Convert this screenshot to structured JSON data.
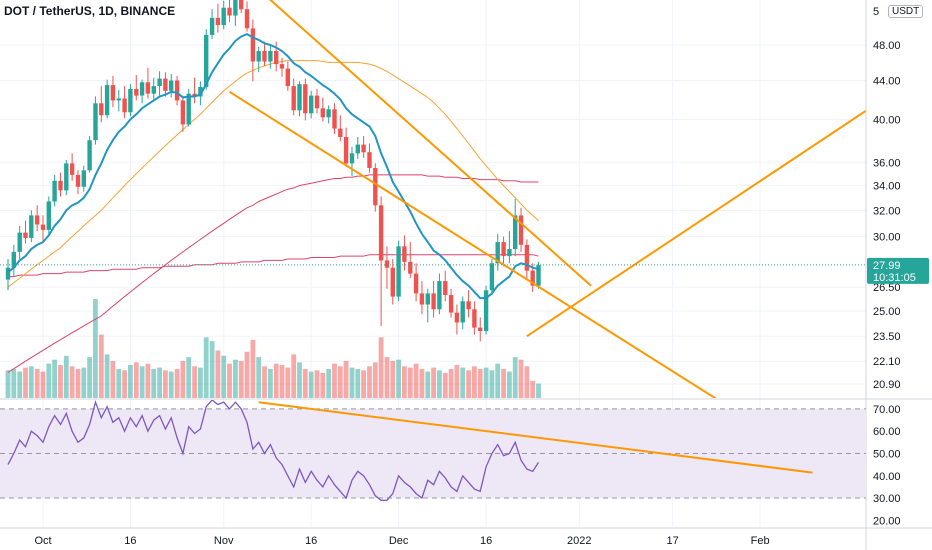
{
  "header": {
    "title": "DOT / TetherUS, 1D, BINANCE",
    "unit": "USDT",
    "top_tick_fragment": "5"
  },
  "last_price": {
    "value": "27.99",
    "countdown": "10:31:05"
  },
  "colors": {
    "up": "#26a69a",
    "down": "#ef5350",
    "ema": "#2196c4",
    "ma_mid": "#f7a334",
    "ma_slow": "#e0436a",
    "trendline": "#ff9800",
    "rsi_line": "#7e57c2",
    "rsi_band": "#ede7f6"
  },
  "chart_data": [
    {
      "type": "candlestick",
      "title": "DOT / TetherUS, 1D, BINANCE",
      "y_scale": "log",
      "y_ticks": [
        "48.00",
        "44.00",
        "40.00",
        "36.00",
        "34.00",
        "32.00",
        "30.00",
        "27.99",
        "26.50",
        "25.00",
        "23.50",
        "22.10",
        "20.90"
      ],
      "x_ticks": [
        "Oct",
        "16",
        "Nov",
        "16",
        "Dec",
        "16",
        "2022",
        "17",
        "Feb"
      ],
      "start_date": "2021-09-25",
      "ohlc": [
        [
          27.0,
          28.4,
          26.3,
          27.8
        ],
        [
          27.8,
          29.4,
          27.2,
          28.9
        ],
        [
          28.9,
          30.8,
          28.4,
          30.3
        ],
        [
          30.3,
          31.2,
          29.5,
          29.9
        ],
        [
          29.9,
          32.0,
          29.6,
          31.6
        ],
        [
          31.6,
          32.4,
          30.4,
          30.9
        ],
        [
          30.9,
          31.6,
          29.7,
          30.5
        ],
        [
          30.5,
          33.1,
          30.2,
          32.7
        ],
        [
          32.7,
          34.9,
          32.3,
          34.4
        ],
        [
          34.4,
          35.1,
          33.1,
          33.6
        ],
        [
          33.6,
          36.2,
          33.2,
          35.9
        ],
        [
          35.9,
          36.8,
          34.4,
          34.9
        ],
        [
          34.9,
          35.3,
          33.3,
          33.9
        ],
        [
          33.9,
          35.7,
          33.5,
          35.3
        ],
        [
          35.3,
          38.4,
          35.1,
          38.0
        ],
        [
          38.0,
          42.3,
          37.6,
          41.6
        ],
        [
          41.6,
          43.4,
          39.7,
          40.4
        ],
        [
          40.4,
          44.1,
          40.1,
          43.5
        ],
        [
          43.5,
          44.5,
          41.2,
          41.9
        ],
        [
          41.9,
          43.0,
          40.8,
          42.1
        ],
        [
          42.1,
          43.4,
          40.1,
          40.7
        ],
        [
          40.7,
          43.6,
          40.3,
          43.1
        ],
        [
          43.1,
          44.6,
          41.9,
          42.4
        ],
        [
          42.4,
          44.1,
          41.6,
          43.8
        ],
        [
          43.8,
          45.4,
          42.1,
          42.6
        ],
        [
          42.6,
          44.3,
          41.8,
          43.4
        ],
        [
          43.4,
          45.0,
          42.4,
          44.2
        ],
        [
          44.2,
          44.9,
          42.3,
          42.9
        ],
        [
          42.9,
          44.7,
          42.2,
          44.0
        ],
        [
          44.0,
          44.5,
          41.4,
          41.9
        ],
        [
          41.9,
          42.4,
          38.8,
          39.5
        ],
        [
          39.5,
          43.1,
          39.3,
          42.6
        ],
        [
          42.6,
          44.3,
          41.6,
          42.3
        ],
        [
          42.3,
          43.9,
          41.4,
          43.3
        ],
        [
          43.3,
          49.9,
          43.0,
          49.2
        ],
        [
          49.2,
          52.4,
          48.7,
          51.3
        ],
        [
          51.3,
          53.1,
          49.5,
          50.4
        ],
        [
          50.4,
          53.5,
          49.9,
          52.6
        ],
        [
          52.6,
          54.1,
          50.8,
          51.6
        ],
        [
          51.6,
          54.5,
          50.3,
          53.8
        ],
        [
          53.8,
          54.6,
          51.9,
          52.4
        ],
        [
          52.4,
          53.4,
          49.6,
          50.0
        ],
        [
          50.0,
          51.1,
          43.9,
          46.1
        ],
        [
          46.1,
          47.8,
          44.9,
          47.3
        ],
        [
          47.3,
          48.4,
          45.6,
          46.1
        ],
        [
          46.1,
          47.9,
          45.3,
          47.3
        ],
        [
          47.3,
          48.4,
          45.0,
          45.8
        ],
        [
          45.8,
          46.5,
          44.4,
          45.3
        ],
        [
          45.3,
          46.1,
          42.9,
          43.4
        ],
        [
          43.4,
          44.2,
          40.4,
          40.9
        ],
        [
          40.9,
          43.9,
          40.3,
          43.6
        ],
        [
          43.6,
          44.2,
          39.9,
          40.6
        ],
        [
          40.6,
          42.9,
          40.1,
          42.4
        ],
        [
          42.4,
          43.1,
          40.6,
          41.1
        ],
        [
          41.1,
          42.2,
          39.8,
          40.2
        ],
        [
          40.2,
          41.4,
          39.6,
          41.0
        ],
        [
          41.0,
          41.6,
          38.6,
          39.1
        ],
        [
          39.1,
          40.4,
          37.9,
          38.3
        ],
        [
          38.3,
          39.2,
          35.6,
          35.9
        ],
        [
          35.9,
          37.4,
          34.8,
          36.8
        ],
        [
          36.8,
          38.3,
          36.3,
          37.6
        ],
        [
          37.6,
          38.4,
          36.4,
          36.9
        ],
        [
          36.9,
          37.7,
          35.1,
          35.5
        ],
        [
          35.5,
          35.9,
          31.9,
          32.4
        ],
        [
          32.4,
          33.1,
          24.1,
          28.3
        ],
        [
          28.3,
          29.3,
          26.4,
          27.8
        ],
        [
          27.8,
          28.4,
          25.4,
          25.9
        ],
        [
          25.9,
          29.7,
          25.6,
          29.3
        ],
        [
          29.3,
          30.1,
          27.6,
          28.2
        ],
        [
          28.2,
          29.6,
          27.1,
          27.4
        ],
        [
          27.4,
          28.1,
          25.6,
          26.1
        ],
        [
          26.1,
          26.9,
          24.8,
          25.4
        ],
        [
          25.4,
          26.4,
          24.3,
          26.1
        ],
        [
          26.1,
          26.9,
          24.6,
          25.1
        ],
        [
          25.1,
          27.4,
          24.8,
          26.9
        ],
        [
          26.9,
          27.6,
          25.6,
          26.0
        ],
        [
          26.0,
          26.4,
          24.6,
          24.9
        ],
        [
          24.9,
          25.4,
          23.6,
          24.3
        ],
        [
          24.3,
          25.9,
          23.9,
          25.6
        ],
        [
          25.6,
          26.3,
          24.6,
          25.1
        ],
        [
          25.1,
          25.6,
          23.6,
          24.0
        ],
        [
          24.0,
          24.6,
          23.2,
          23.8
        ],
        [
          23.8,
          26.6,
          23.6,
          26.3
        ],
        [
          26.3,
          28.4,
          26.0,
          28.1
        ],
        [
          28.1,
          30.2,
          27.6,
          29.6
        ],
        [
          29.6,
          30.0,
          27.9,
          28.6
        ],
        [
          28.6,
          30.4,
          28.1,
          29.1
        ],
        [
          29.1,
          32.9,
          28.6,
          31.6
        ],
        [
          31.6,
          32.2,
          28.9,
          29.4
        ],
        [
          29.4,
          29.8,
          27.1,
          27.6
        ],
        [
          27.6,
          28.1,
          26.2,
          26.6
        ],
        [
          26.6,
          28.2,
          26.4,
          27.99
        ]
      ],
      "volume": [
        42,
        44,
        40,
        46,
        48,
        44,
        40,
        52,
        58,
        50,
        64,
        48,
        44,
        46,
        62,
        150,
        96,
        66,
        56,
        44,
        42,
        50,
        54,
        48,
        52,
        44,
        46,
        42,
        40,
        44,
        56,
        62,
        48,
        46,
        92,
        86,
        72,
        64,
        52,
        58,
        56,
        70,
        88,
        62,
        48,
        44,
        52,
        50,
        46,
        66,
        54,
        44,
        40,
        42,
        38,
        44,
        52,
        48,
        56,
        46,
        44,
        42,
        48,
        54,
        92,
        62,
        56,
        58,
        48,
        46,
        52,
        44,
        40,
        46,
        42,
        38,
        44,
        50,
        46,
        42,
        48,
        44,
        46,
        42,
        52,
        44,
        40,
        62,
        58,
        48,
        26,
        22
      ],
      "ema": [
        27.5,
        27.8,
        28.3,
        28.6,
        29.1,
        29.4,
        29.6,
        30.1,
        30.8,
        31.3,
        32.0,
        32.4,
        32.6,
        33.0,
        33.7,
        34.9,
        35.9,
        37.1,
        38.0,
        38.8,
        39.3,
        40.0,
        40.5,
        41.1,
        41.5,
        41.9,
        42.3,
        42.5,
        42.8,
        42.7,
        42.2,
        42.3,
        42.3,
        42.5,
        43.6,
        44.9,
        45.9,
        46.9,
        47.6,
        48.5,
        49.0,
        49.3,
        48.9,
        48.6,
        48.2,
        48.0,
        47.7,
        47.3,
        46.7,
        45.9,
        45.5,
        44.9,
        44.5,
        44.0,
        43.5,
        43.1,
        42.6,
        42.0,
        41.1,
        40.5,
        40.1,
        39.7,
        39.3,
        38.4,
        36.8,
        35.6,
        34.3,
        33.5,
        32.7,
        31.9,
        31.0,
        30.2,
        29.6,
        29.0,
        28.7,
        28.3,
        27.8,
        27.3,
        26.9,
        26.6,
        26.2,
        25.8,
        25.8,
        26.1,
        26.6,
        26.9,
        27.2,
        27.9,
        28.1,
        28.0,
        27.8,
        27.7
      ],
      "ma_mid": [
        26.5,
        26.8,
        27.1,
        27.4,
        27.7,
        28.0,
        28.3,
        28.6,
        28.9,
        29.2,
        29.6,
        30.0,
        30.4,
        30.8,
        31.2,
        31.6,
        32.0,
        32.5,
        33.0,
        33.5,
        34.0,
        34.5,
        35.0,
        35.5,
        36.0,
        36.5,
        37.0,
        37.5,
        38.0,
        38.5,
        39.0,
        39.5,
        40.0,
        40.5,
        41.1,
        41.7,
        42.3,
        42.9,
        43.4,
        43.9,
        44.4,
        44.8,
        45.1,
        45.4,
        45.6,
        45.8,
        46.0,
        46.1,
        46.2,
        46.2,
        46.2,
        46.2,
        46.2,
        46.2,
        46.1,
        46.0,
        46.0,
        46.0,
        46.0,
        46.0,
        46.0,
        45.9,
        45.8,
        45.6,
        45.3,
        45.0,
        44.6,
        44.2,
        43.8,
        43.4,
        43.0,
        42.6,
        42.2,
        41.7,
        41.1,
        40.5,
        39.8,
        39.1,
        38.4,
        37.7,
        37.0,
        36.3,
        35.7,
        35.1,
        34.5,
        34.0,
        33.5,
        33.0,
        32.5,
        32.0,
        31.6,
        31.2
      ],
      "ma_slow": [
        21.5,
        21.7,
        21.9,
        22.1,
        22.3,
        22.5,
        22.7,
        22.9,
        23.1,
        23.3,
        23.5,
        23.7,
        23.9,
        24.1,
        24.3,
        24.5,
        24.7,
        25.0,
        25.3,
        25.6,
        25.9,
        26.2,
        26.5,
        26.8,
        27.1,
        27.4,
        27.7,
        28.0,
        28.3,
        28.6,
        28.9,
        29.2,
        29.5,
        29.8,
        30.1,
        30.4,
        30.7,
        31.0,
        31.3,
        31.6,
        31.9,
        32.2,
        32.4,
        32.7,
        32.9,
        33.1,
        33.3,
        33.5,
        33.7,
        33.8,
        34.0,
        34.1,
        34.2,
        34.3,
        34.4,
        34.5,
        34.6,
        34.6,
        34.7,
        34.7,
        34.8,
        34.8,
        34.9,
        34.9,
        34.9,
        34.9,
        34.9,
        34.9,
        34.9,
        34.9,
        34.9,
        34.9,
        34.8,
        34.8,
        34.8,
        34.7,
        34.7,
        34.7,
        34.6,
        34.6,
        34.6,
        34.5,
        34.5,
        34.5,
        34.5,
        34.4,
        34.4,
        34.4,
        34.3,
        34.3,
        34.3,
        34.3
      ],
      "ma_long": [
        27.2,
        27.2,
        27.3,
        27.3,
        27.3,
        27.3,
        27.4,
        27.4,
        27.4,
        27.4,
        27.5,
        27.5,
        27.5,
        27.5,
        27.6,
        27.6,
        27.6,
        27.6,
        27.7,
        27.7,
        27.7,
        27.7,
        27.7,
        27.8,
        27.8,
        27.8,
        27.8,
        27.9,
        27.9,
        27.9,
        27.9,
        27.9,
        28.0,
        28.0,
        28.0,
        28.0,
        28.1,
        28.1,
        28.1,
        28.1,
        28.2,
        28.2,
        28.2,
        28.2,
        28.3,
        28.3,
        28.3,
        28.3,
        28.4,
        28.4,
        28.4,
        28.4,
        28.5,
        28.5,
        28.5,
        28.5,
        28.5,
        28.6,
        28.6,
        28.6,
        28.6,
        28.6,
        28.7,
        28.7,
        28.7,
        28.7,
        28.7,
        28.7,
        28.7,
        28.7,
        28.7,
        28.7,
        28.7,
        28.7,
        28.7,
        28.7,
        28.7,
        28.7,
        28.7,
        28.7,
        28.7,
        28.7,
        28.7,
        28.7,
        28.7,
        28.7,
        28.7,
        28.7,
        28.7,
        28.7,
        28.7,
        28.6
      ],
      "trendlines": [
        [
          [
            "2021-11-07",
            55.0
          ],
          [
            "2022-01-03",
            26.6
          ]
        ],
        [
          [
            "2021-11-02",
            42.8
          ],
          [
            "2022-02-27",
            14.9
          ]
        ],
        [
          [
            "2021-12-23",
            23.5
          ],
          [
            "2022-03-12",
            49.8
          ]
        ]
      ]
    },
    {
      "type": "line",
      "title": "",
      "y_ticks": [
        "70.00",
        "60.00",
        "50.00",
        "40.00",
        "30.00",
        "20.00"
      ],
      "ylim": [
        17,
        74
      ],
      "band": [
        30,
        70
      ],
      "midline": 50,
      "rsi": [
        45,
        50,
        56,
        53,
        60,
        58,
        55,
        62,
        67,
        63,
        68,
        60,
        55,
        57,
        63,
        73,
        66,
        71,
        64,
        66,
        60,
        66,
        62,
        67,
        60,
        65,
        67,
        61,
        66,
        57,
        50,
        62,
        59,
        61,
        71,
        74,
        72,
        73,
        70,
        73,
        70,
        64,
        52,
        55,
        50,
        54,
        48,
        45,
        40,
        35,
        43,
        37,
        42,
        38,
        35,
        40,
        36,
        33,
        30,
        38,
        42,
        40,
        36,
        31,
        29,
        29,
        32,
        40,
        37,
        35,
        32,
        30,
        38,
        36,
        42,
        39,
        35,
        33,
        40,
        37,
        34,
        33,
        44,
        50,
        54,
        49,
        50,
        55,
        47,
        43,
        42,
        46
      ],
      "trendline": [
        [
          "2021-11-07",
          73.0
        ],
        [
          "2022-02-10",
          41.4
        ]
      ]
    }
  ]
}
